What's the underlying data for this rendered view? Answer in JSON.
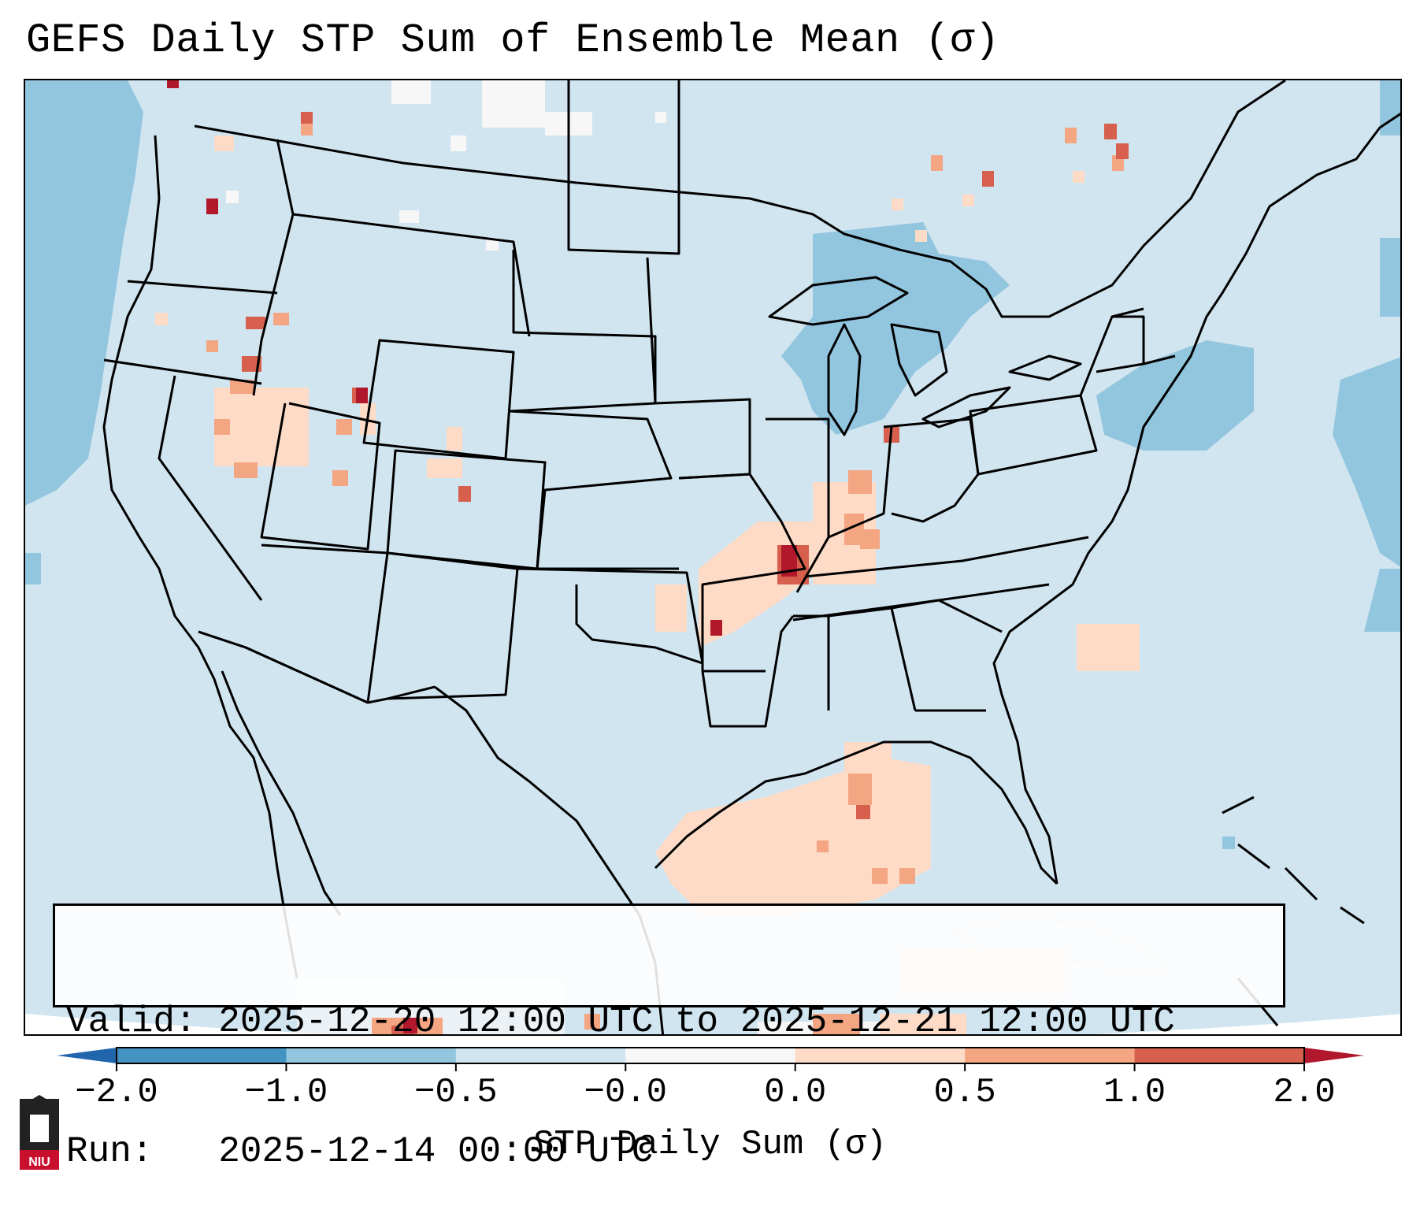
{
  "title": "GEFS Daily STP Sum of Ensemble Mean (σ)",
  "valid_label": "Valid:",
  "valid_range": "2025-12-20 12:00 UTC to 2025-12-21 12:00 UTC",
  "run_label": "Run:",
  "run_time": "2025-12-14 00:00 UTC",
  "colorbar": {
    "label": "STP Daily Sum (σ)",
    "ticks": [
      "−2.0",
      "−1.0",
      "−0.5",
      "−0.0",
      "0.0",
      "0.5",
      "1.0",
      "2.0"
    ],
    "bins": [
      {
        "from": -2.0,
        "to": -1.0,
        "color": "#4393c3"
      },
      {
        "from": -1.0,
        "to": -0.5,
        "color": "#92c5de"
      },
      {
        "from": -0.5,
        "to": -0.0,
        "color": "#d1e5f0"
      },
      {
        "from": -0.0,
        "to": 0.0,
        "color": "#f7f7f7"
      },
      {
        "from": 0.0,
        "to": 0.5,
        "color": "#fddbc7"
      },
      {
        "from": 0.5,
        "to": 1.0,
        "color": "#f4a582"
      },
      {
        "from": 1.0,
        "to": 2.0,
        "color": "#d6604d"
      }
    ],
    "under_color": "#2166ac",
    "over_color": "#b2182b"
  },
  "map": {
    "background_color": "#d1e5f0",
    "logo_text": "NIU"
  }
}
